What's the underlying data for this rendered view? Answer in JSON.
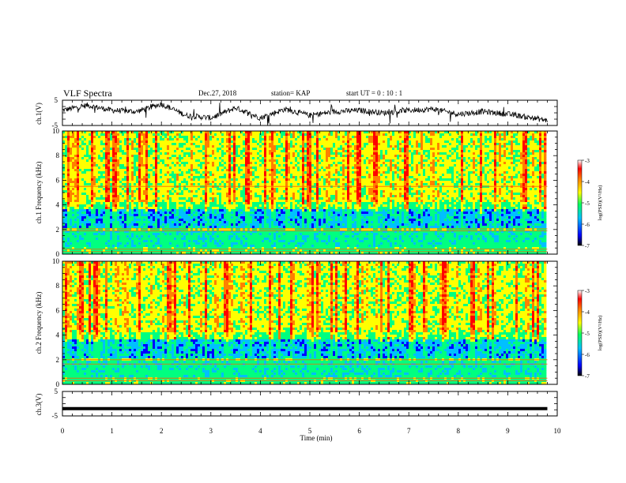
{
  "header": {
    "title": "VLF Spectra",
    "date": "Dec.27, 2018",
    "station": "station= KAP",
    "start": "start  UT  =   0  : 10 : 1"
  },
  "colors": {
    "spectrum_scale": [
      "#000000",
      "#0000ff",
      "#00c0ff",
      "#00ff80",
      "#ffff00",
      "#ff8000",
      "#ff0000",
      "#ffffff"
    ]
  },
  "chart_data": [
    {
      "type": "line",
      "name": "ch1-waveform",
      "ylabel": "ch.1(V)",
      "ylim": [
        -5,
        5
      ],
      "yticks": [
        "5",
        "-5"
      ],
      "xlim": [
        0,
        10
      ],
      "x": [
        0,
        0.5,
        1,
        1.5,
        2,
        2.5,
        3,
        3.5,
        4,
        4.5,
        5,
        5.5,
        6,
        6.5,
        7,
        7.5,
        8,
        8.5,
        9,
        9.5,
        9.8
      ],
      "values": [
        1,
        3,
        1,
        0.5,
        3.5,
        -1,
        -2,
        2,
        -2,
        1.5,
        -1,
        0.5,
        1,
        0,
        1,
        1.5,
        -0.5,
        0.5,
        -0.5,
        -2,
        -3
      ],
      "grid": false
    },
    {
      "type": "heatmap",
      "name": "ch1-spectrogram",
      "ylabel": "ch.1 Frequency (kHz)",
      "ylim": [
        0,
        10
      ],
      "yticks": [
        "0",
        "2",
        "4",
        "6",
        "8",
        "10"
      ],
      "xlim": [
        0,
        10
      ],
      "data_xmax": 9.8,
      "colorbar": {
        "label": "log(PSD)(V²/Hz)",
        "ticks": [
          "-3",
          "-4",
          "-5",
          "-6",
          "-7"
        ],
        "range": [
          -7,
          -3
        ]
      }
    },
    {
      "type": "heatmap",
      "name": "ch2-spectrogram",
      "ylabel": "ch.2 Frequency (kHz)",
      "ylim": [
        0,
        10
      ],
      "yticks": [
        "0",
        "2",
        "4",
        "6",
        "8",
        "10"
      ],
      "xlim": [
        0,
        10
      ],
      "data_xmax": 9.8,
      "colorbar": {
        "label": "log(PSD)(V²/Hz)",
        "ticks": [
          "-3",
          "-4",
          "-5",
          "-6",
          "-7"
        ],
        "range": [
          -7,
          -3
        ]
      }
    },
    {
      "type": "line",
      "name": "ch3-waveform",
      "ylabel": "ch.3(V)",
      "ylim": [
        -5,
        5
      ],
      "yticks": [
        "5",
        "-5"
      ],
      "xlim": [
        0,
        10
      ],
      "x": [
        0,
        9.8
      ],
      "values": [
        -2,
        -2
      ],
      "grid": false
    }
  ],
  "xaxis": {
    "label": "Time  (min)",
    "ticks": [
      "0",
      "1",
      "2",
      "3",
      "4",
      "5",
      "6",
      "7",
      "8",
      "9",
      "10"
    ]
  }
}
